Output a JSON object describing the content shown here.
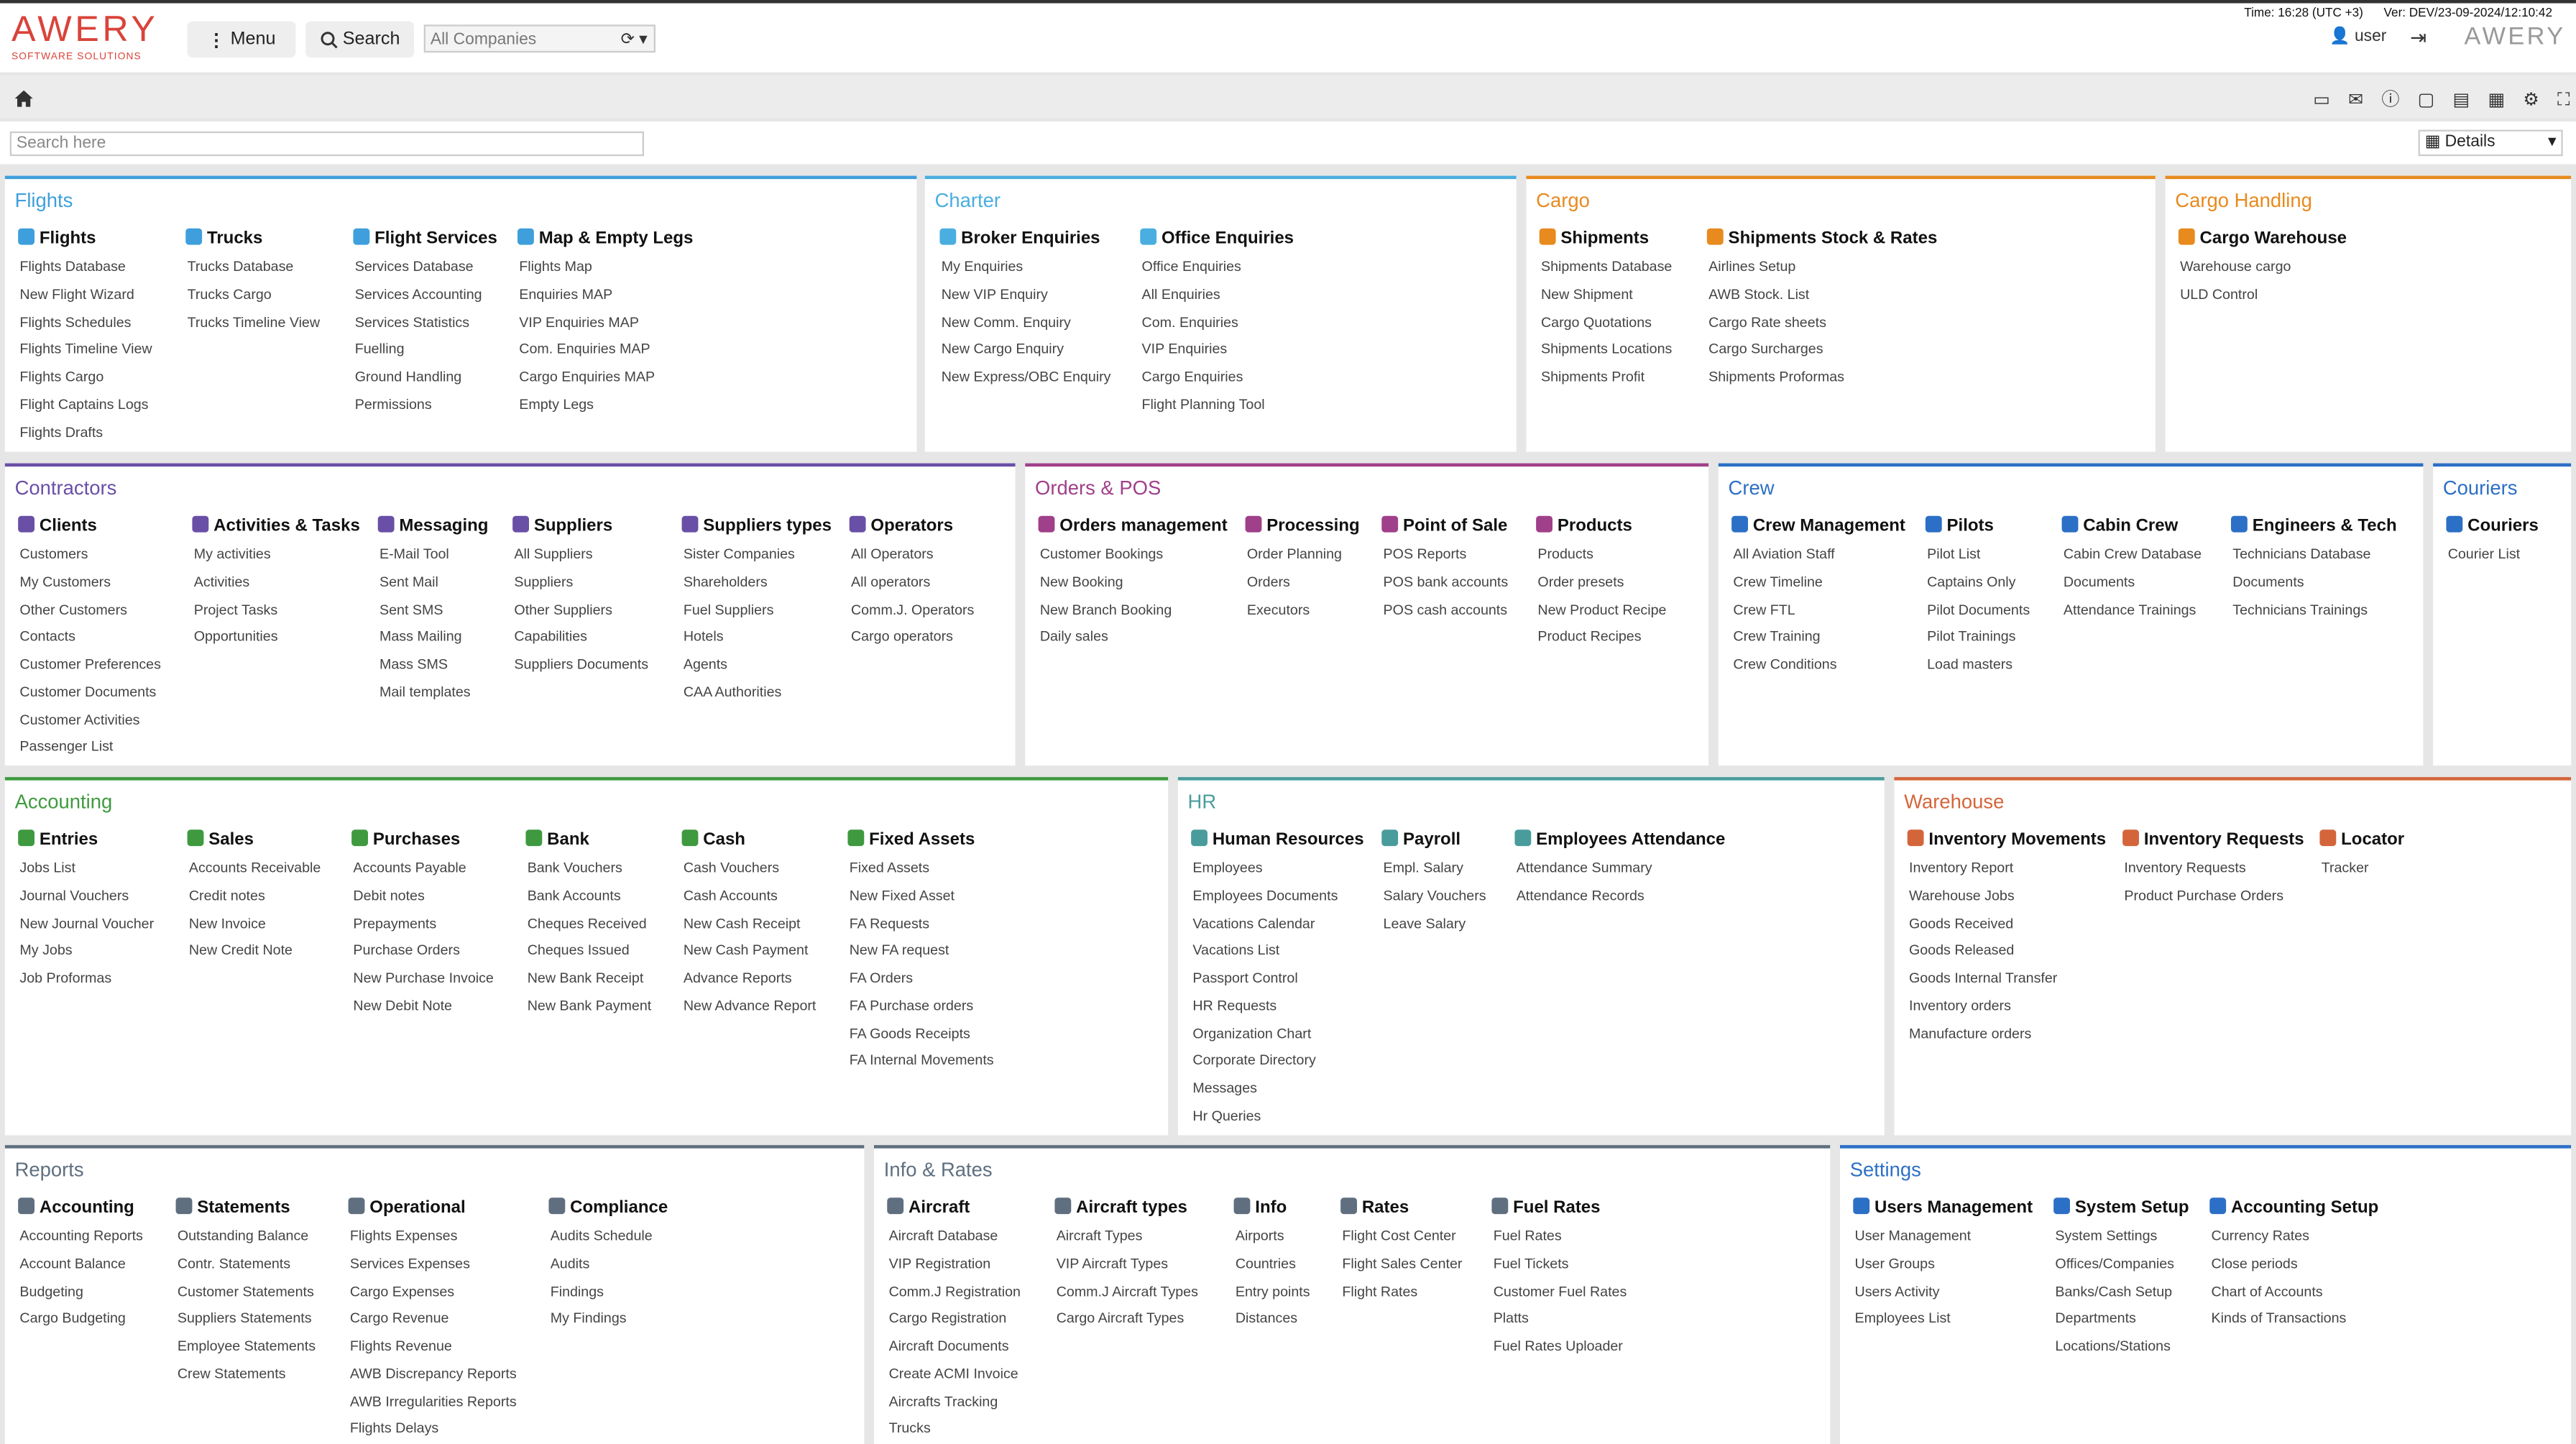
{
  "header": {
    "logo": "AWERY",
    "logo_sub": "SOFTWARE SOLUTIONS",
    "menu": "Menu",
    "search": "Search",
    "company": "All Companies",
    "time": "Time: 16:28 (UTC +3)",
    "version": "Ver: DEV/23-09-2024/12:10:42",
    "user": "user",
    "logo_right": "AWERY"
  },
  "search_placeholder": "Search here",
  "details": "Details",
  "panels": [
    {
      "title": "Flights",
      "color": "#3f9fdc",
      "groups": [
        {
          "heading": "Flights",
          "items": [
            "Flights Database",
            "New Flight Wizard",
            "Flights Schedules",
            "Flights Timeline View",
            "Flights Cargo",
            "Flight Captains Logs",
            "Flights Drafts"
          ]
        },
        {
          "heading": "Trucks",
          "items": [
            "Trucks Database",
            "Trucks Cargo",
            "Trucks Timeline View"
          ]
        },
        {
          "heading": "Flight Services",
          "items": [
            "Services Database",
            "Services Accounting",
            "Services Statistics",
            "Fuelling",
            "Ground Handling",
            "Permissions"
          ]
        },
        {
          "heading": "Map & Empty Legs",
          "items": [
            "Flights Map",
            "Enquiries MAP",
            "VIP Enquiries MAP",
            "Com. Enquiries MAP",
            "Cargo Enquiries MAP",
            "Empty Legs"
          ]
        }
      ]
    },
    {
      "title": "Charter",
      "color": "#4aaee0",
      "groups": [
        {
          "heading": "Broker Enquiries",
          "items": [
            "My Enquiries",
            "New VIP Enquiry",
            "New Comm. Enquiry",
            "New Cargo Enquiry",
            "New Express/OBC Enquiry"
          ]
        },
        {
          "heading": "Office Enquiries",
          "items": [
            "Office Enquiries",
            "All Enquiries",
            "Com. Enquiries",
            "VIP Enquiries",
            "Cargo Enquiries",
            "Flight Planning Tool"
          ]
        }
      ]
    },
    {
      "title": "Cargo",
      "color": "#e88a1e",
      "groups": [
        {
          "heading": "Shipments",
          "items": [
            "Shipments Database",
            "New Shipment",
            "Cargo Quotations",
            "Shipments Locations",
            "Shipments Profit"
          ]
        },
        {
          "heading": "Shipments Stock & Rates",
          "items": [
            "Airlines Setup",
            "AWB Stock. List",
            "Cargo Rate sheets",
            "Cargo Surcharges",
            "Shipments Proformas"
          ]
        }
      ]
    },
    {
      "title": "Cargo Handling",
      "color": "#e88a1e",
      "groups": [
        {
          "heading": "Cargo Warehouse",
          "items": [
            "Warehouse cargo",
            "ULD Control"
          ]
        }
      ]
    },
    {
      "title": "Contractors",
      "color": "#6a4fa6",
      "groups": [
        {
          "heading": "Clients",
          "items": [
            "Customers",
            "My Customers",
            "Other Customers",
            "Contacts",
            "Customer Preferences",
            "Customer Documents",
            "Customer Activities",
            "Passenger List"
          ]
        },
        {
          "heading": "Activities & Tasks",
          "items": [
            "My activities",
            "Activities",
            "Project Tasks",
            "Opportunities"
          ]
        },
        {
          "heading": "Messaging",
          "items": [
            "E-Mail Tool",
            "Sent Mail",
            "Sent SMS",
            "Mass Mailing",
            "Mass SMS",
            "Mail templates"
          ]
        },
        {
          "heading": "Suppliers",
          "items": [
            "All Suppliers",
            "Suppliers",
            "Other Suppliers",
            "Capabilities",
            "Suppliers Documents"
          ]
        },
        {
          "heading": "Suppliers types",
          "items": [
            "Sister Companies",
            "Shareholders",
            "Fuel Suppliers",
            "Hotels",
            "Agents",
            "CAA Authorities"
          ]
        },
        {
          "heading": "Operators",
          "items": [
            "All Operators",
            "All operators",
            "Comm.J. Operators",
            "Cargo operators"
          ]
        }
      ]
    },
    {
      "title": "Orders & POS",
      "color": "#a0408a",
      "groups": [
        {
          "heading": "Orders management",
          "items": [
            "Customer Bookings",
            "New Booking",
            "New Branch Booking",
            "Daily sales"
          ]
        },
        {
          "heading": "Processing",
          "items": [
            "Order Planning",
            "Orders",
            "Executors"
          ]
        },
        {
          "heading": "Point of Sale",
          "items": [
            "POS Reports",
            "POS bank accounts",
            "POS cash accounts"
          ]
        },
        {
          "heading": "Products",
          "items": [
            "Products",
            "Order presets",
            "New Product Recipe",
            "Product Recipes"
          ]
        }
      ]
    },
    {
      "title": "Crew",
      "color": "#2c6fc6",
      "groups": [
        {
          "heading": "Crew Management",
          "items": [
            "All Aviation Staff",
            "Crew Timeline",
            "Crew FTL",
            "Crew Training",
            "Crew Conditions"
          ]
        },
        {
          "heading": "Pilots",
          "items": [
            "Pilot List",
            "Captains Only",
            "Pilot Documents",
            "Pilot Trainings",
            "Load masters"
          ]
        },
        {
          "heading": "Cabin Crew",
          "items": [
            "Cabin Crew Database",
            "Documents",
            "Attendance Trainings"
          ]
        },
        {
          "heading": "Engineers & Tech",
          "items": [
            "Technicians Database",
            "Documents",
            "Technicians Trainings"
          ]
        }
      ]
    },
    {
      "title": "Couriers",
      "color": "#2c6fc6",
      "groups": [
        {
          "heading": "Couriers",
          "items": [
            "Courier List"
          ]
        }
      ]
    },
    {
      "title": "Accounting",
      "color": "#3f9a3f",
      "groups": [
        {
          "heading": "Entries",
          "items": [
            "Jobs List",
            "Journal Vouchers",
            "New Journal Voucher",
            "My Jobs",
            "Job Proformas"
          ]
        },
        {
          "heading": "Sales",
          "items": [
            "Accounts Receivable",
            "Credit notes",
            "New Invoice",
            "New Credit Note"
          ]
        },
        {
          "heading": "Purchases",
          "items": [
            "Accounts Payable",
            "Debit notes",
            "Prepayments",
            "Purchase Orders",
            "New Purchase Invoice",
            "New Debit Note"
          ]
        },
        {
          "heading": "Bank",
          "items": [
            "Bank Vouchers",
            "Bank Accounts",
            "Cheques Received",
            "Cheques Issued",
            "New Bank Receipt",
            "New Bank Payment"
          ]
        },
        {
          "heading": "Cash",
          "items": [
            "Cash Vouchers",
            "Cash Accounts",
            "New Cash Receipt",
            "New Cash Payment",
            "Advance Reports",
            "New Advance Report"
          ]
        },
        {
          "heading": "Fixed Assets",
          "items": [
            "Fixed Assets",
            "New Fixed Asset",
            "FA Requests",
            "New FA request",
            "FA Orders",
            "FA Purchase orders",
            "FA Goods Receipts",
            "FA Internal Movements"
          ]
        }
      ]
    },
    {
      "title": "HR",
      "color": "#4a9c9c",
      "groups": [
        {
          "heading": "Human Resources",
          "items": [
            "Employees",
            "Employees Documents",
            "Vacations Calendar",
            "Vacations List",
            "Passport Control",
            "HR Requests",
            "Organization Chart",
            "Corporate Directory",
            "Messages",
            "Hr Queries"
          ]
        },
        {
          "heading": "Payroll",
          "items": [
            "Empl. Salary",
            "Salary Vouchers",
            "Leave Salary"
          ]
        },
        {
          "heading": "Employees Attendance",
          "items": [
            "Attendance Summary",
            "Attendance Records"
          ]
        }
      ]
    },
    {
      "title": "Warehouse",
      "color": "#d4653a",
      "groups": [
        {
          "heading": "Inventory Movements",
          "items": [
            "Inventory Report",
            "Warehouse Jobs",
            "Goods Received",
            "Goods Released",
            "Goods Internal Transfer",
            "Inventory orders",
            "Manufacture orders"
          ]
        },
        {
          "heading": "Inventory Requests",
          "items": [
            "Inventory Requests",
            "Product Purchase Orders"
          ]
        },
        {
          "heading": "Locator",
          "items": [
            "Tracker"
          ]
        }
      ]
    },
    {
      "title": "Reports",
      "color": "#5f6f80",
      "groups": [
        {
          "heading": "Accounting",
          "items": [
            "Accounting Reports",
            "Account Balance",
            "Budgeting",
            "Cargo Budgeting"
          ]
        },
        {
          "heading": "Statements",
          "items": [
            "Outstanding Balance",
            "Contr. Statements",
            "Customer Statements",
            "Suppliers Statements",
            "Employee Statements",
            "Crew Statements"
          ]
        },
        {
          "heading": "Operational",
          "items": [
            "Flights Expenses",
            "Services Expenses",
            "Cargo Expenses",
            "Cargo Revenue",
            "Flights Revenue",
            "AWB Discrepancy Reports",
            "AWB Irregularities Reports",
            "Flights Delays"
          ]
        },
        {
          "heading": "Compliance",
          "items": [
            "Audits Schedule",
            "Audits",
            "Findings",
            "My Findings"
          ]
        }
      ]
    },
    {
      "title": "Info & Rates",
      "color": "#5f6f80",
      "groups": [
        {
          "heading": "Aircraft",
          "items": [
            "Aircraft Database",
            "VIP Registration",
            "Comm.J Registration",
            "Cargo Registration",
            "Aircraft Documents",
            "Create ACMI Invoice",
            "Aircrafts Tracking",
            "Trucks"
          ]
        },
        {
          "heading": "Aircraft types",
          "items": [
            "Aircraft Types",
            "VIP Aircraft Types",
            "Comm.J Aircraft Types",
            "Cargo Aircraft Types"
          ]
        },
        {
          "heading": "Info",
          "items": [
            "Airports",
            "Countries",
            "Entry points",
            "Distances"
          ]
        },
        {
          "heading": "Rates",
          "items": [
            "Flight Cost Center",
            "Flight Sales Center",
            "Flight Rates"
          ]
        },
        {
          "heading": "Fuel Rates",
          "items": [
            "Fuel Rates",
            "Fuel Tickets",
            "Customer Fuel Rates",
            "Platts",
            "Fuel Rates Uploader"
          ]
        }
      ]
    },
    {
      "title": "Settings",
      "color": "#2c6fc6",
      "groups": [
        {
          "heading": "Users Management",
          "items": [
            "User Management",
            "User Groups",
            "Users Activity",
            "Employees List"
          ]
        },
        {
          "heading": "System Setup",
          "items": [
            "System Settings",
            "Offices/Companies",
            "Banks/Cash Setup",
            "Departments",
            "Locations/Stations"
          ]
        },
        {
          "heading": "Accounting Setup",
          "items": [
            "Currency Rates",
            "Close periods",
            "Chart of Accounts",
            "Kinds of Transactions"
          ]
        }
      ]
    }
  ]
}
